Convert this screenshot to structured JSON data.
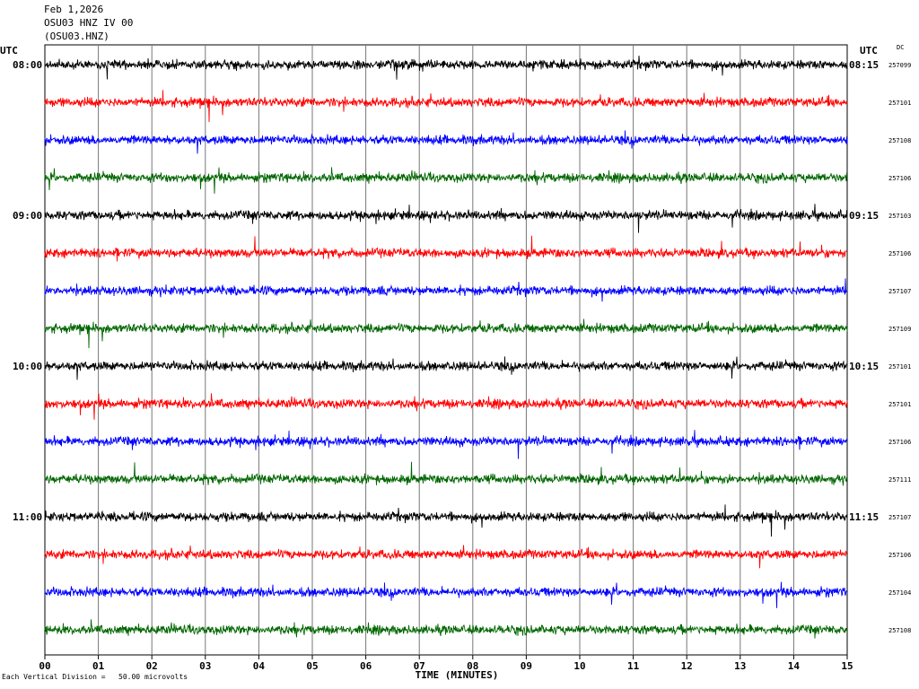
{
  "header": {
    "date": "Feb 1,2026",
    "station": "OSU03 HNZ IV 00",
    "channel_code": "(OSU03.HNZ)"
  },
  "labels": {
    "utc_left": "UTC",
    "utc_right": "UTC",
    "dc": "DC",
    "footer_legend": "Each Vertical Division =   50.00 microvolts"
  },
  "chart_data": {
    "type": "line",
    "title": "",
    "xlabel": "TIME (MINUTES)",
    "ylabel": "",
    "x_ticks": [
      "00",
      "01",
      "02",
      "03",
      "04",
      "05",
      "06",
      "07",
      "08",
      "09",
      "10",
      "11",
      "12",
      "13",
      "14",
      "15"
    ],
    "xlim": [
      0,
      15
    ],
    "grid": true,
    "trace_colors": [
      "#000000",
      "#ff0000",
      "#0000ff",
      "#006600"
    ],
    "left_time_labels": [
      "08:00",
      "",
      "",
      "",
      "09:00",
      "",
      "",
      "",
      "10:00",
      "",
      "",
      "",
      "11:00",
      "",
      "",
      ""
    ],
    "right_time_labels": [
      "08:15",
      "",
      "",
      "",
      "09:15",
      "",
      "",
      "",
      "10:15",
      "",
      "",
      "",
      "11:15",
      "",
      "",
      ""
    ],
    "dc_offsets": [
      "257099",
      "257101",
      "257108",
      "257106",
      "257103",
      "257106",
      "257107",
      "257109",
      "257101",
      "257101",
      "257106",
      "257111",
      "257107",
      "257106",
      "257104",
      "257108"
    ]
  }
}
